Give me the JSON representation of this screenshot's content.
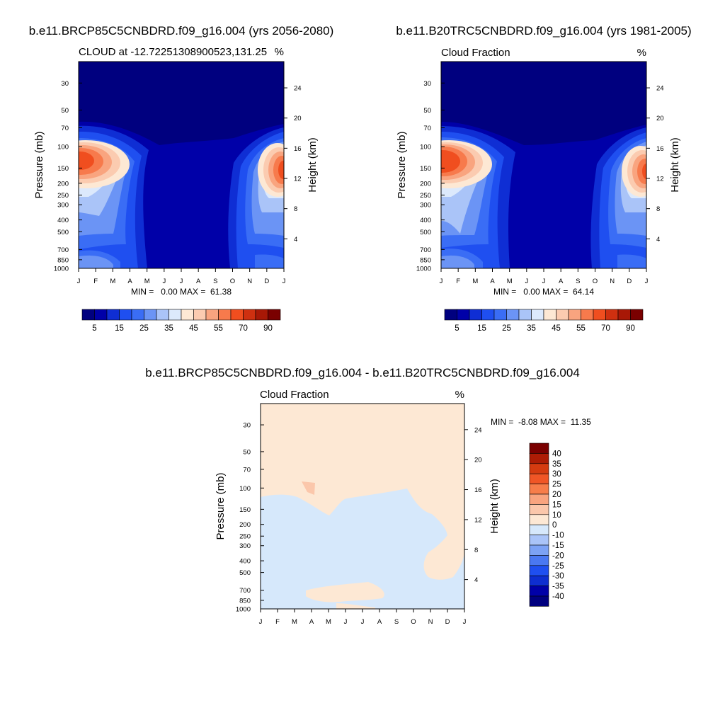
{
  "chart_data": [
    {
      "type": "heatmap",
      "title": "b.e11.BRCP85C5CNBDRD.f09_g16.004 (yrs 2056-2080)",
      "subtitle_left": "CLOUD at -12.72251308900523,131.25",
      "subtitle_right": "%",
      "xlabel": "",
      "ylabel": "Pressure (mb)",
      "ylabel_right": "Height (km)",
      "x_ticks": [
        "J",
        "F",
        "M",
        "A",
        "M",
        "J",
        "J",
        "A",
        "S",
        "O",
        "N",
        "D",
        "J"
      ],
      "y_ticks": [
        30,
        50,
        70,
        100,
        150,
        200,
        250,
        300,
        400,
        500,
        700,
        850,
        1000
      ],
      "y_scale": "log",
      "ylim": [
        1000,
        20
      ],
      "height_ticks": [
        4,
        8,
        12,
        16,
        20,
        24
      ],
      "stats_text": "MIN =   0.00 MAX =  61.38",
      "min": 0.0,
      "max": 61.38,
      "colorbar_labels": [
        "5",
        "15",
        "25",
        "35",
        "45",
        "55",
        "70",
        "90"
      ],
      "levels": [
        0,
        5,
        10,
        15,
        20,
        25,
        30,
        35,
        40,
        45,
        50,
        55,
        60,
        70,
        80,
        90
      ],
      "peaks": [
        {
          "month": 0.4,
          "pressure": 150,
          "value": 61
        },
        {
          "month": 11.6,
          "pressure": 150,
          "value": 58
        },
        {
          "month": 0.8,
          "pressure": 600,
          "value": 30
        },
        {
          "month": 11.2,
          "pressure": 600,
          "value": 28
        },
        {
          "month": 1.0,
          "pressure": 900,
          "value": 20
        }
      ]
    },
    {
      "type": "heatmap",
      "title": "b.e11.B20TRC5CNBDRD.f09_g16.004 (yrs 1981-2005)",
      "subtitle_left": "Cloud Fraction",
      "subtitle_right": "%",
      "xlabel": "",
      "ylabel": "Pressure (mb)",
      "ylabel_right": "Height (km)",
      "x_ticks": [
        "J",
        "F",
        "M",
        "A",
        "M",
        "J",
        "J",
        "A",
        "S",
        "O",
        "N",
        "D",
        "J"
      ],
      "y_ticks": [
        30,
        50,
        70,
        100,
        150,
        200,
        250,
        300,
        400,
        500,
        700,
        850,
        1000
      ],
      "y_scale": "log",
      "ylim": [
        1000,
        20
      ],
      "height_ticks": [
        4,
        8,
        12,
        16,
        20,
        24
      ],
      "stats_text": "MIN =   0.00 MAX =  64.14",
      "min": 0.0,
      "max": 64.14,
      "colorbar_labels": [
        "5",
        "15",
        "25",
        "35",
        "45",
        "55",
        "70",
        "90"
      ],
      "levels": [
        0,
        5,
        10,
        15,
        20,
        25,
        30,
        35,
        40,
        45,
        50,
        55,
        60,
        70,
        80,
        90
      ],
      "peaks": [
        {
          "month": 0.4,
          "pressure": 150,
          "value": 64
        },
        {
          "month": 11.6,
          "pressure": 160,
          "value": 56
        },
        {
          "month": 0.8,
          "pressure": 600,
          "value": 30
        },
        {
          "month": 11.2,
          "pressure": 600,
          "value": 28
        },
        {
          "month": 1.0,
          "pressure": 900,
          "value": 20
        }
      ]
    },
    {
      "type": "heatmap",
      "title": "b.e11.BRCP85C5CNBDRD.f09_g16.004 - b.e11.B20TRC5CNBDRD.f09_g16.004",
      "subtitle_left": "Cloud Fraction",
      "subtitle_right": "%",
      "xlabel": "",
      "ylabel": "Pressure (mb)",
      "ylabel_right": "Height (km)",
      "x_ticks": [
        "J",
        "F",
        "M",
        "A",
        "M",
        "J",
        "J",
        "A",
        "S",
        "O",
        "N",
        "D",
        "J"
      ],
      "y_ticks": [
        30,
        50,
        70,
        100,
        150,
        200,
        250,
        300,
        400,
        500,
        700,
        850,
        1000
      ],
      "y_scale": "log",
      "ylim": [
        1000,
        20
      ],
      "height_ticks": [
        4,
        8,
        12,
        16,
        20,
        24
      ],
      "stats_text": "MIN =  -8.08 MAX =  11.35",
      "min": -8.08,
      "max": 11.35,
      "colorbar_labels": [
        "40",
        "35",
        "30",
        "25",
        "20",
        "15",
        "10",
        "0",
        "-10",
        "-15",
        "-20",
        "-25",
        "-30",
        "-35",
        "-40"
      ],
      "levels": [
        -40,
        -35,
        -30,
        -25,
        -20,
        -15,
        -10,
        0,
        10,
        15,
        20,
        25,
        30,
        35,
        40
      ],
      "regions": [
        {
          "description": "above ~130 mb",
          "value_class": "0 to 10"
        },
        {
          "description": "below ~130 mb",
          "value_class": "-10 to 0"
        },
        {
          "description": "Nov-Dec 300-500 mb",
          "value_class": "0 to 10"
        },
        {
          "description": "Mar-Aug 700-900 mb",
          "value_class": "0 to 10"
        }
      ]
    }
  ],
  "colors": {
    "pos_scale": [
      "#00007f",
      "#0000a8",
      "#0f2ed4",
      "#1f4ff0",
      "#3a6df5",
      "#6b94f5",
      "#aac4f8",
      "#dce9fc",
      "#fde8d4",
      "#fbcbb0",
      "#f9a47f",
      "#f77a4c",
      "#f04e1f",
      "#cf3010",
      "#a81806",
      "#7a0000"
    ],
    "diff_scale": [
      "#7a0000",
      "#ad1c05",
      "#d53b10",
      "#f05626",
      "#f77d4a",
      "#f9a47f",
      "#fbc7ab",
      "#fde8d4",
      "#d6e8fb",
      "#aac4f8",
      "#7ca2f5",
      "#4a78f2",
      "#1f4ff0",
      "#0e2ed0",
      "#0000a8",
      "#00007f"
    ]
  }
}
